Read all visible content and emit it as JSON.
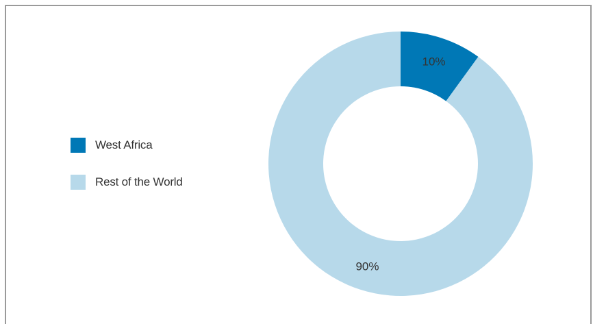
{
  "chart_data": {
    "type": "pie",
    "style": "donut",
    "categories": [
      "West Africa",
      "Rest of the World"
    ],
    "values": [
      10,
      90
    ],
    "labels": [
      "10%",
      "90%"
    ],
    "colors": [
      "#0078b6",
      "#b7d9ea"
    ],
    "legend_position": "left",
    "title": ""
  }
}
